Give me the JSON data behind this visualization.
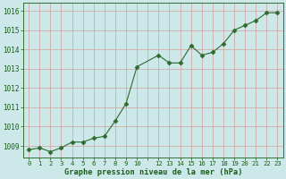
{
  "x": [
    0,
    1,
    2,
    3,
    4,
    5,
    6,
    7,
    8,
    9,
    10,
    12,
    13,
    14,
    15,
    16,
    17,
    18,
    19,
    20,
    21,
    22,
    23
  ],
  "y": [
    1008.8,
    1008.9,
    1008.7,
    1008.9,
    1009.2,
    1009.2,
    1009.4,
    1009.5,
    1010.3,
    1011.2,
    1013.1,
    1013.7,
    1013.3,
    1013.3,
    1014.2,
    1013.7,
    1013.85,
    1014.3,
    1015.0,
    1015.25,
    1015.5,
    1015.9,
    1015.9
  ],
  "line_color": "#2d6a2d",
  "marker": "D",
  "marker_size": 2.5,
  "bg_color": "#cce8e8",
  "grid_color": "#d4a0a0",
  "xlabel": "Graphe pression niveau de la mer (hPa)",
  "xlabel_color": "#1a5c1a",
  "tick_color": "#1a5c1a",
  "ylim": [
    1008.4,
    1016.4
  ],
  "xlim": [
    -0.5,
    23.5
  ],
  "yticks": [
    1009,
    1010,
    1011,
    1012,
    1013,
    1014,
    1015,
    1016
  ],
  "xtick_labels": [
    "0",
    "1",
    "2",
    "3",
    "4",
    "5",
    "6",
    "7",
    "8",
    "9",
    "10",
    "",
    "12",
    "13",
    "14",
    "15",
    "16",
    "17",
    "18",
    "19",
    "20",
    "21",
    "22",
    "23"
  ],
  "xtick_positions": [
    0,
    1,
    2,
    3,
    4,
    5,
    6,
    7,
    8,
    9,
    10,
    11,
    12,
    13,
    14,
    15,
    16,
    17,
    18,
    19,
    20,
    21,
    22,
    23
  ]
}
